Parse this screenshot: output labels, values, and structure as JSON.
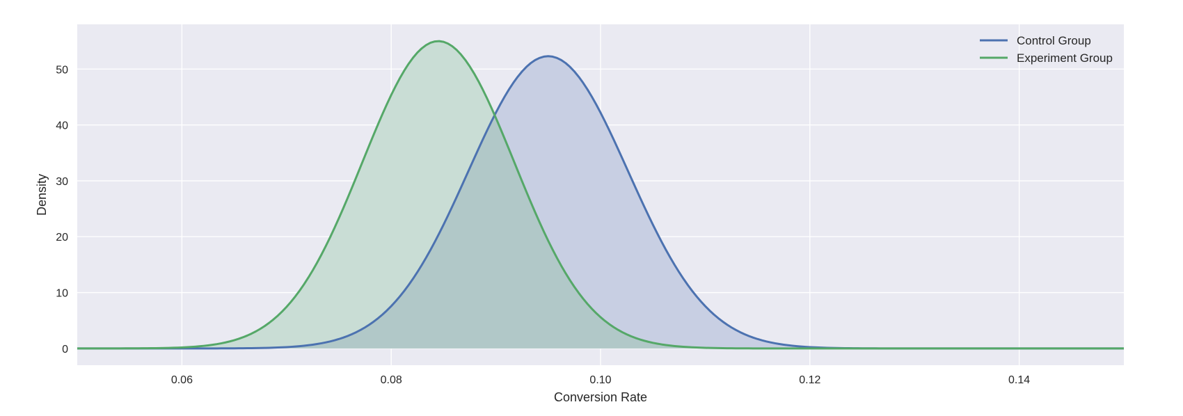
{
  "chart_data": {
    "type": "line",
    "title": "",
    "xlabel": "Conversion Rate",
    "ylabel": "Density",
    "xlim": [
      0.05,
      0.15
    ],
    "ylim": [
      -3,
      58
    ],
    "xticks": [
      0.06,
      0.08,
      0.1,
      0.12,
      0.14
    ],
    "xtick_labels": [
      "0.06",
      "0.08",
      "0.10",
      "0.12",
      "0.14"
    ],
    "yticks": [
      0,
      10,
      20,
      30,
      40,
      50
    ],
    "ytick_labels": [
      "0",
      "10",
      "20",
      "30",
      "40",
      "50"
    ],
    "grid": true,
    "legend_position": "top-right",
    "series": [
      {
        "name": "Control Group",
        "color": "#4c72b0",
        "fill": "#c8cfe3",
        "mean": 0.095,
        "std": 0.00763,
        "peak_density": 52.3
      },
      {
        "name": "Experiment Group",
        "color": "#55a868",
        "fill": "#c9ddd5",
        "mean": 0.0845,
        "std": 0.00725,
        "peak_density": 55.0
      }
    ],
    "overlap_fill": "#b1c8c8",
    "background": "#eaeaf2",
    "grid_color": "#ffffff"
  }
}
